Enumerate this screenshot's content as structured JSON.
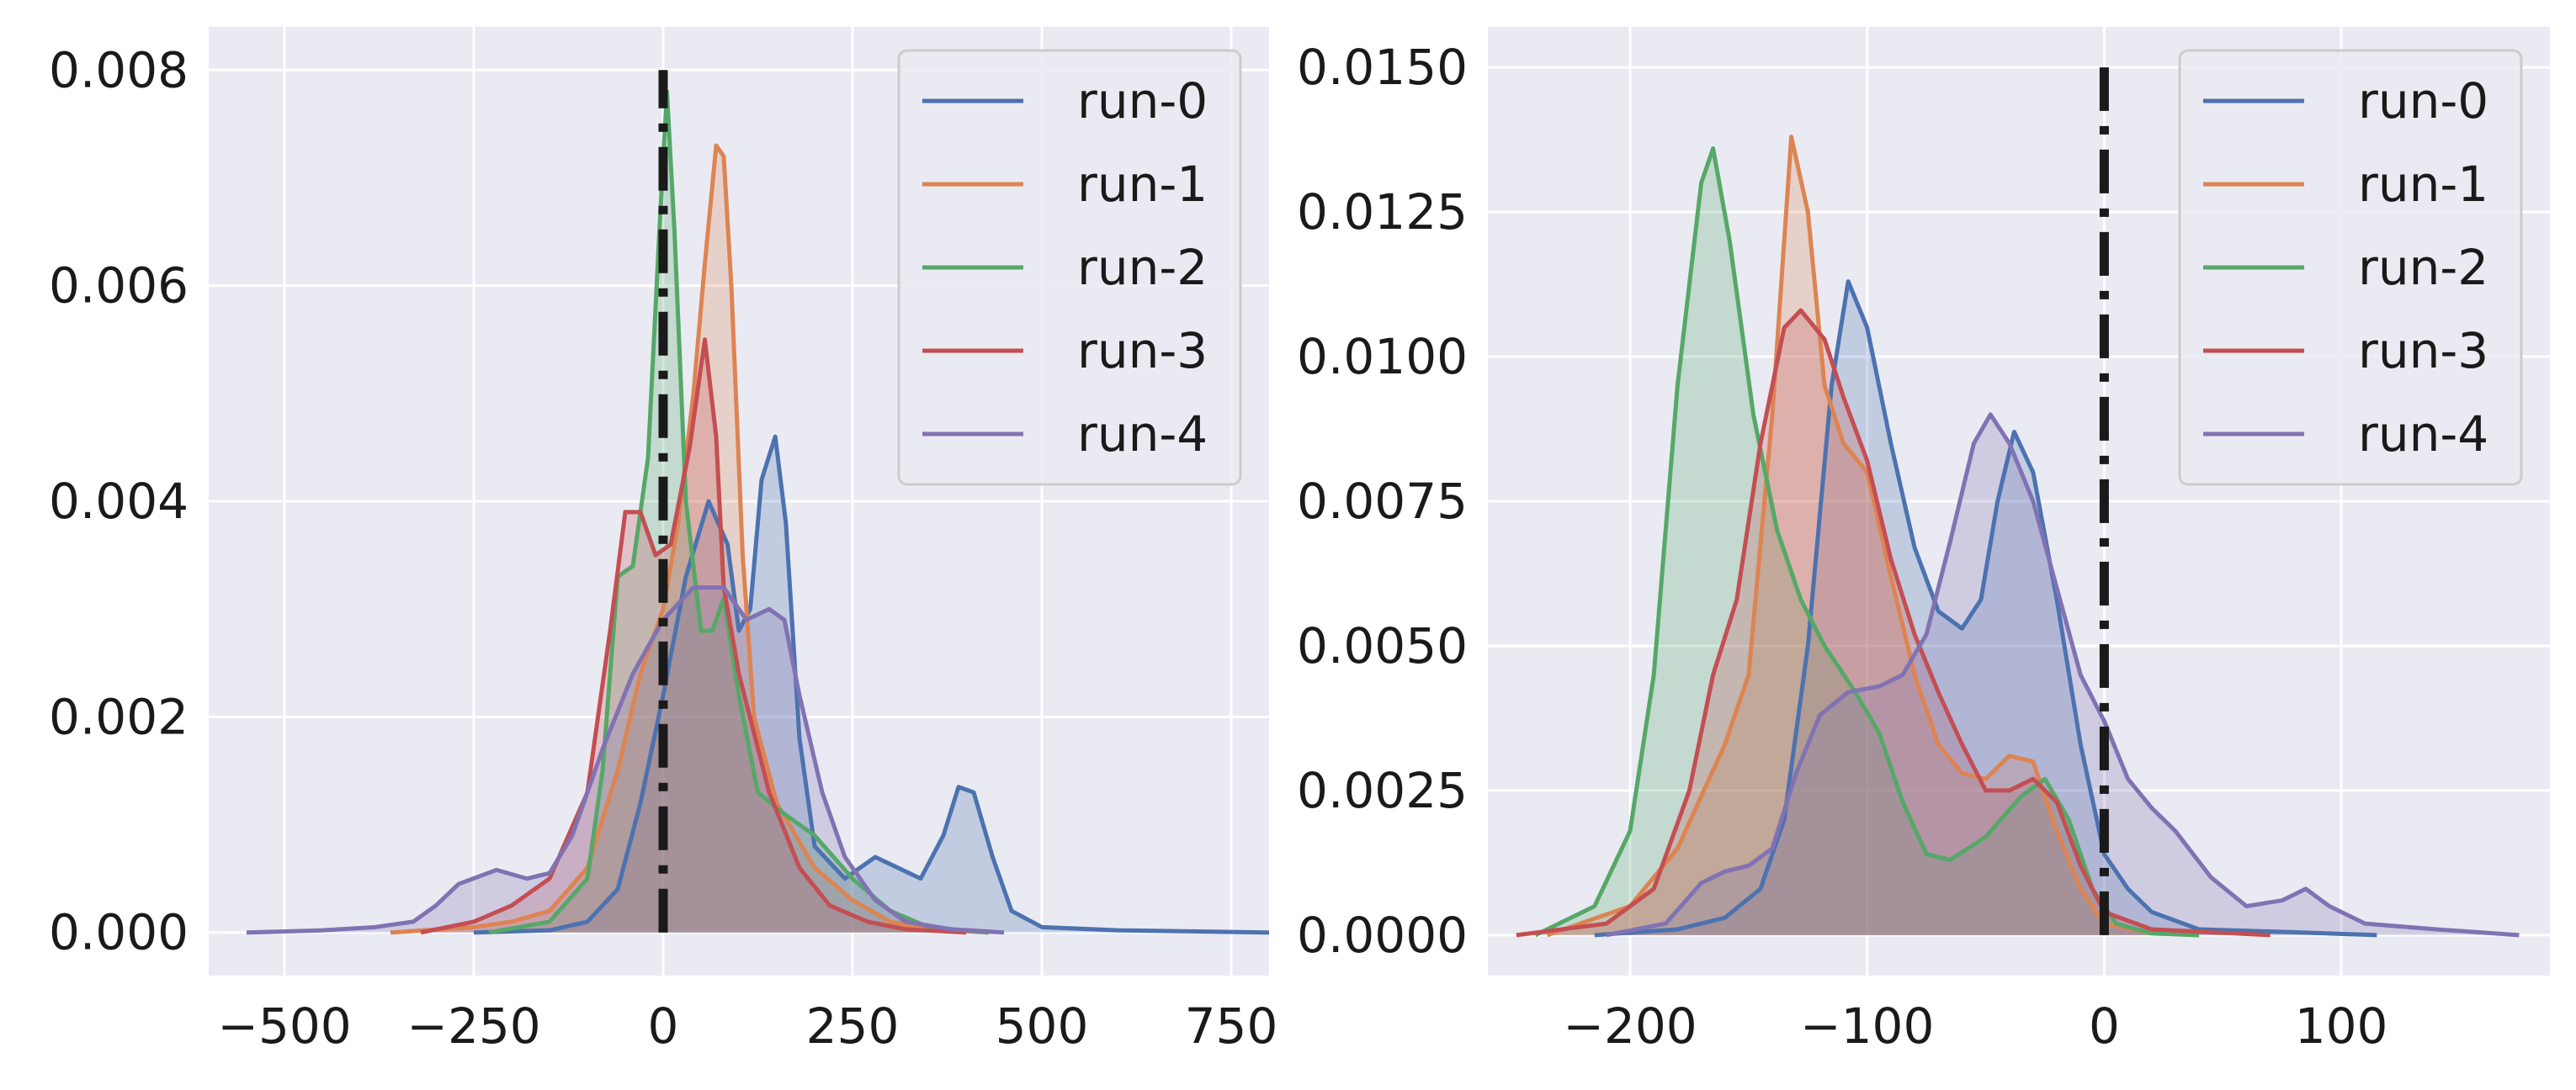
{
  "colors": {
    "panel_bg": "#eaeaf2",
    "grid": "#ffffff",
    "zero_line": "#1a1a1a",
    "series": [
      "#4c72b0",
      "#dd8452",
      "#55a868",
      "#c44e52",
      "#8172b3"
    ]
  },
  "chart_data": [
    {
      "type": "area",
      "title": "",
      "xlabel": "",
      "ylabel": "",
      "xlim": [
        -600,
        800
      ],
      "ylim": [
        -0.0004,
        0.0084
      ],
      "x_ticks": [
        -500,
        -250,
        0,
        250,
        500,
        750
      ],
      "x_tick_labels": [
        "−500",
        "−250",
        "0",
        "250",
        "500",
        "750"
      ],
      "y_ticks": [
        0,
        0.002,
        0.004,
        0.006,
        0.008
      ],
      "y_tick_labels": [
        "0.000",
        "0.002",
        "0.004",
        "0.006",
        "0.008"
      ],
      "grid": true,
      "legend": "top-right",
      "reference_line": {
        "x": 0,
        "y_range": [
          0,
          0.008
        ],
        "style": "dash-dot"
      },
      "series": [
        {
          "name": "run-0",
          "points": [
            [
              -250,
              0
            ],
            [
              -150,
              2e-05
            ],
            [
              -100,
              0.0001
            ],
            [
              -60,
              0.0004
            ],
            [
              -30,
              0.0012
            ],
            [
              0,
              0.0022
            ],
            [
              30,
              0.0033
            ],
            [
              60,
              0.004
            ],
            [
              85,
              0.0036
            ],
            [
              100,
              0.0028
            ],
            [
              115,
              0.003
            ],
            [
              130,
              0.0042
            ],
            [
              148,
              0.0046
            ],
            [
              162,
              0.0038
            ],
            [
              180,
              0.0018
            ],
            [
              200,
              0.0008
            ],
            [
              240,
              0.0005
            ],
            [
              280,
              0.0007
            ],
            [
              310,
              0.0006
            ],
            [
              340,
              0.0005
            ],
            [
              370,
              0.0009
            ],
            [
              390,
              0.00135
            ],
            [
              410,
              0.0013
            ],
            [
              435,
              0.0007
            ],
            [
              460,
              0.0002
            ],
            [
              500,
              5e-05
            ],
            [
              600,
              2e-05
            ],
            [
              800,
              0
            ]
          ]
        },
        {
          "name": "run-1",
          "points": [
            [
              -360,
              0
            ],
            [
              -250,
              5e-05
            ],
            [
              -200,
              0.0001
            ],
            [
              -150,
              0.0002
            ],
            [
              -100,
              0.0006
            ],
            [
              -60,
              0.0015
            ],
            [
              -30,
              0.0024
            ],
            [
              0,
              0.003
            ],
            [
              20,
              0.0038
            ],
            [
              40,
              0.005
            ],
            [
              55,
              0.0062
            ],
            [
              70,
              0.0073
            ],
            [
              80,
              0.0072
            ],
            [
              90,
              0.006
            ],
            [
              105,
              0.0035
            ],
            [
              120,
              0.002
            ],
            [
              150,
              0.0012
            ],
            [
              200,
              0.0006
            ],
            [
              250,
              0.0003
            ],
            [
              300,
              0.0001
            ],
            [
              350,
              3e-05
            ],
            [
              430,
              0
            ]
          ]
        },
        {
          "name": "run-2",
          "points": [
            [
              -230,
              0
            ],
            [
              -150,
              0.0001
            ],
            [
              -100,
              0.0005
            ],
            [
              -80,
              0.0015
            ],
            [
              -60,
              0.0033
            ],
            [
              -40,
              0.0034
            ],
            [
              -20,
              0.0044
            ],
            [
              -5,
              0.0065
            ],
            [
              5,
              0.0078
            ],
            [
              15,
              0.0065
            ],
            [
              30,
              0.004
            ],
            [
              50,
              0.0028
            ],
            [
              65,
              0.0028
            ],
            [
              80,
              0.0031
            ],
            [
              100,
              0.0022
            ],
            [
              125,
              0.0013
            ],
            [
              160,
              0.0011
            ],
            [
              200,
              0.0009
            ],
            [
              250,
              0.0005
            ],
            [
              300,
              0.0002
            ],
            [
              350,
              5e-05
            ],
            [
              430,
              0
            ]
          ]
        },
        {
          "name": "run-3",
          "points": [
            [
              -320,
              0
            ],
            [
              -250,
              0.0001
            ],
            [
              -200,
              0.00025
            ],
            [
              -150,
              0.0005
            ],
            [
              -100,
              0.0013
            ],
            [
              -70,
              0.0028
            ],
            [
              -50,
              0.0039
            ],
            [
              -30,
              0.0039
            ],
            [
              -10,
              0.0035
            ],
            [
              10,
              0.0036
            ],
            [
              35,
              0.0045
            ],
            [
              55,
              0.0055
            ],
            [
              70,
              0.0046
            ],
            [
              80,
              0.0032
            ],
            [
              100,
              0.0024
            ],
            [
              140,
              0.0013
            ],
            [
              180,
              0.0006
            ],
            [
              220,
              0.00025
            ],
            [
              270,
              0.0001
            ],
            [
              320,
              3e-05
            ],
            [
              400,
              0
            ]
          ]
        },
        {
          "name": "run-4",
          "points": [
            [
              -550,
              0
            ],
            [
              -450,
              2e-05
            ],
            [
              -380,
              5e-05
            ],
            [
              -330,
              0.0001
            ],
            [
              -300,
              0.00025
            ],
            [
              -270,
              0.00045
            ],
            [
              -220,
              0.00058
            ],
            [
              -180,
              0.0005
            ],
            [
              -150,
              0.00055
            ],
            [
              -120,
              0.0009
            ],
            [
              -80,
              0.0017
            ],
            [
              -40,
              0.0024
            ],
            [
              0,
              0.0029
            ],
            [
              40,
              0.0032
            ],
            [
              80,
              0.0032
            ],
            [
              110,
              0.0029
            ],
            [
              140,
              0.003
            ],
            [
              160,
              0.0029
            ],
            [
              180,
              0.0022
            ],
            [
              210,
              0.0013
            ],
            [
              240,
              0.0007
            ],
            [
              280,
              0.0003
            ],
            [
              320,
              0.0001
            ],
            [
              380,
              3e-05
            ],
            [
              450,
              0
            ]
          ]
        }
      ]
    },
    {
      "type": "area",
      "title": "",
      "xlabel": "",
      "ylabel": "",
      "xlim": [
        -260,
        188
      ],
      "ylim": [
        -0.0007,
        0.0157
      ],
      "x_ticks": [
        -200,
        -100,
        0,
        100
      ],
      "x_tick_labels": [
        "−200",
        "−100",
        "0",
        "100"
      ],
      "y_ticks": [
        0,
        0.0025,
        0.005,
        0.0075,
        0.01,
        0.0125,
        0.015
      ],
      "y_tick_labels": [
        "0.0000",
        "0.0025",
        "0.0050",
        "0.0075",
        "0.0100",
        "0.0125",
        "0.0150"
      ],
      "grid": true,
      "legend": "top-right",
      "reference_line": {
        "x": 0,
        "y_range": [
          0,
          0.015
        ],
        "style": "dash-dot"
      },
      "series": [
        {
          "name": "run-0",
          "points": [
            [
              -215,
              0
            ],
            [
              -180,
              0.0001
            ],
            [
              -160,
              0.0003
            ],
            [
              -145,
              0.0008
            ],
            [
              -135,
              0.002
            ],
            [
              -125,
              0.005
            ],
            [
              -115,
              0.0095
            ],
            [
              -108,
              0.0113
            ],
            [
              -100,
              0.0105
            ],
            [
              -90,
              0.0085
            ],
            [
              -80,
              0.0067
            ],
            [
              -70,
              0.0056
            ],
            [
              -60,
              0.0053
            ],
            [
              -52,
              0.0058
            ],
            [
              -45,
              0.0075
            ],
            [
              -38,
              0.0087
            ],
            [
              -30,
              0.008
            ],
            [
              -20,
              0.0058
            ],
            [
              -10,
              0.0033
            ],
            [
              0,
              0.0014
            ],
            [
              10,
              0.0008
            ],
            [
              20,
              0.0004
            ],
            [
              40,
              0.0001
            ],
            [
              80,
              5e-05
            ],
            [
              115,
              0
            ]
          ]
        },
        {
          "name": "run-1",
          "points": [
            [
              -235,
              0
            ],
            [
              -200,
              0.0005
            ],
            [
              -180,
              0.0015
            ],
            [
              -160,
              0.0033
            ],
            [
              -150,
              0.0045
            ],
            [
              -140,
              0.009
            ],
            [
              -132,
              0.0138
            ],
            [
              -125,
              0.0125
            ],
            [
              -118,
              0.0095
            ],
            [
              -110,
              0.0085
            ],
            [
              -100,
              0.008
            ],
            [
              -90,
              0.0062
            ],
            [
              -80,
              0.0045
            ],
            [
              -70,
              0.0033
            ],
            [
              -60,
              0.0028
            ],
            [
              -50,
              0.0027
            ],
            [
              -40,
              0.0031
            ],
            [
              -30,
              0.003
            ],
            [
              -20,
              0.0018
            ],
            [
              -10,
              0.0008
            ],
            [
              0,
              0.0002
            ],
            [
              20,
              3e-05
            ],
            [
              40,
              0
            ]
          ]
        },
        {
          "name": "run-2",
          "points": [
            [
              -240,
              0
            ],
            [
              -215,
              0.0005
            ],
            [
              -200,
              0.0018
            ],
            [
              -190,
              0.0045
            ],
            [
              -180,
              0.0095
            ],
            [
              -170,
              0.013
            ],
            [
              -165,
              0.0136
            ],
            [
              -158,
              0.012
            ],
            [
              -148,
              0.009
            ],
            [
              -138,
              0.007
            ],
            [
              -128,
              0.0058
            ],
            [
              -118,
              0.005
            ],
            [
              -105,
              0.0042
            ],
            [
              -95,
              0.0035
            ],
            [
              -85,
              0.0023
            ],
            [
              -75,
              0.0014
            ],
            [
              -65,
              0.0013
            ],
            [
              -50,
              0.0017
            ],
            [
              -35,
              0.0024
            ],
            [
              -25,
              0.0027
            ],
            [
              -15,
              0.002
            ],
            [
              -5,
              0.0008
            ],
            [
              5,
              0.0002
            ],
            [
              20,
              3e-05
            ],
            [
              40,
              0
            ]
          ]
        },
        {
          "name": "run-3",
          "points": [
            [
              -248,
              0
            ],
            [
              -210,
              0.0002
            ],
            [
              -190,
              0.0008
            ],
            [
              -175,
              0.0025
            ],
            [
              -165,
              0.0045
            ],
            [
              -155,
              0.0058
            ],
            [
              -145,
              0.0085
            ],
            [
              -135,
              0.0105
            ],
            [
              -128,
              0.0108
            ],
            [
              -118,
              0.0103
            ],
            [
              -110,
              0.0093
            ],
            [
              -100,
              0.0082
            ],
            [
              -90,
              0.0065
            ],
            [
              -80,
              0.0052
            ],
            [
              -70,
              0.0042
            ],
            [
              -60,
              0.0033
            ],
            [
              -50,
              0.0025
            ],
            [
              -40,
              0.0025
            ],
            [
              -30,
              0.0027
            ],
            [
              -20,
              0.0023
            ],
            [
              -10,
              0.0012
            ],
            [
              0,
              0.0004
            ],
            [
              20,
              0.0001
            ],
            [
              70,
              0
            ]
          ]
        },
        {
          "name": "run-4",
          "points": [
            [
              -210,
              0
            ],
            [
              -185,
              0.0002
            ],
            [
              -170,
              0.0009
            ],
            [
              -160,
              0.0011
            ],
            [
              -150,
              0.0012
            ],
            [
              -140,
              0.0015
            ],
            [
              -130,
              0.0028
            ],
            [
              -120,
              0.0038
            ],
            [
              -108,
              0.0042
            ],
            [
              -95,
              0.0043
            ],
            [
              -85,
              0.0045
            ],
            [
              -75,
              0.0052
            ],
            [
              -65,
              0.0068
            ],
            [
              -55,
              0.0085
            ],
            [
              -48,
              0.009
            ],
            [
              -40,
              0.0085
            ],
            [
              -30,
              0.0075
            ],
            [
              -20,
              0.006
            ],
            [
              -10,
              0.0045
            ],
            [
              0,
              0.0037
            ],
            [
              10,
              0.0027
            ],
            [
              20,
              0.0022
            ],
            [
              30,
              0.0018
            ],
            [
              45,
              0.001
            ],
            [
              60,
              0.0005
            ],
            [
              75,
              0.0006
            ],
            [
              85,
              0.0008
            ],
            [
              95,
              0.0005
            ],
            [
              110,
              0.0002
            ],
            [
              140,
              0.0001
            ],
            [
              175,
              0
            ]
          ]
        }
      ]
    }
  ]
}
